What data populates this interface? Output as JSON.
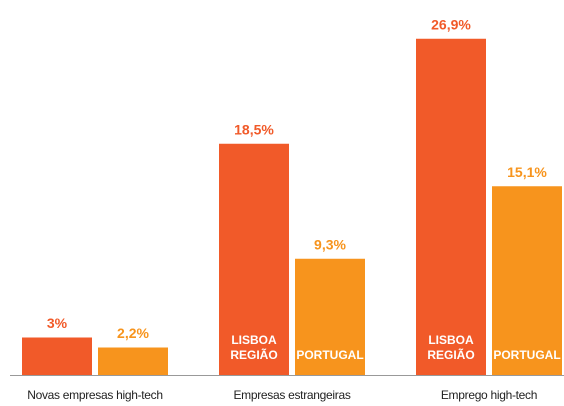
{
  "chart_data": {
    "type": "bar",
    "categories": [
      "Novas empresas high-tech",
      "Empresas estrangeiras",
      "Emprego high-tech"
    ],
    "series": [
      {
        "name": "LISBOA REGIÃO",
        "color": "#f15a29",
        "values": [
          3,
          18.5,
          26.9
        ],
        "value_labels": [
          "3%",
          "18,5%",
          "26,9%"
        ]
      },
      {
        "name": "PORTUGAL",
        "color": "#f7941d",
        "values": [
          2.2,
          9.3,
          15.1
        ],
        "value_labels": [
          "2,2%",
          "9,3%",
          "15,1%"
        ]
      }
    ],
    "ylim": [
      0,
      30
    ]
  }
}
